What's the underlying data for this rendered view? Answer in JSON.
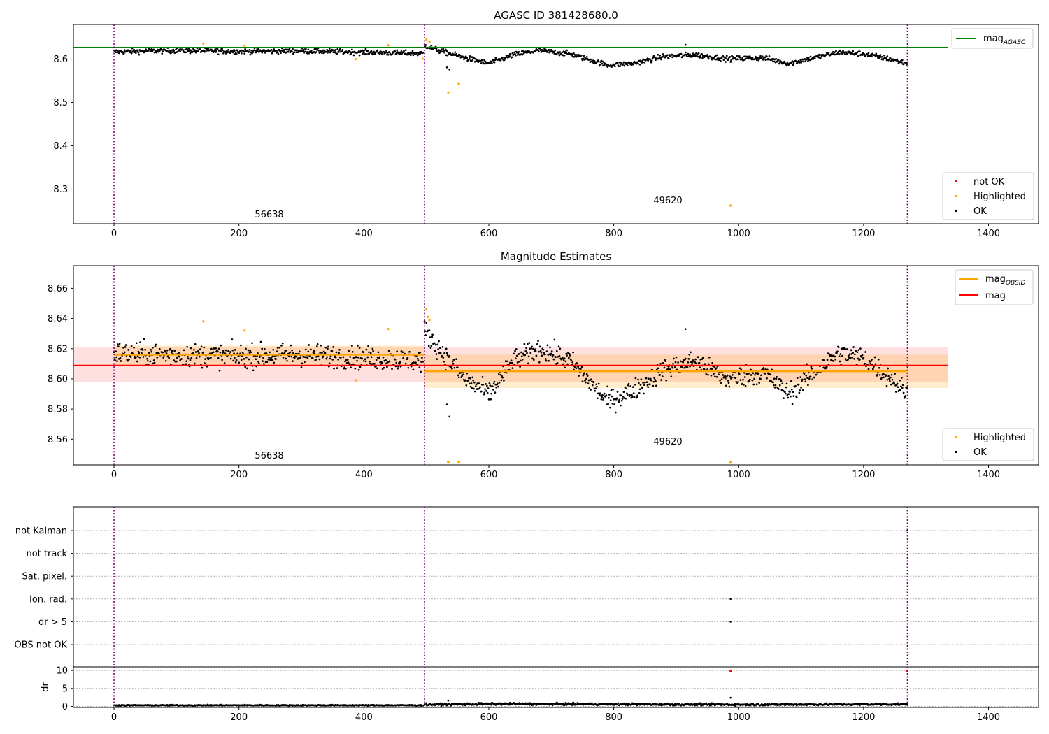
{
  "chart_data": [
    {
      "type": "scatter",
      "title": "AGASC ID 381428680.0",
      "xlabel": "",
      "ylabel": "",
      "xlim": [
        -65,
        1480
      ],
      "ylim": [
        8.22,
        8.68
      ],
      "xticks": [
        0,
        200,
        400,
        600,
        800,
        1000,
        1200,
        1400
      ],
      "yticks": [
        8.3,
        8.4,
        8.5,
        8.6
      ],
      "ytick_labels": [
        "8.3",
        "8.4",
        "8.5",
        "8.6"
      ],
      "obsid_boundaries": [
        0,
        497,
        1270
      ],
      "obsid_labels": [
        {
          "text": "56638",
          "x": 248,
          "y": 8.24
        },
        {
          "text": "49620",
          "x": 883,
          "y": 8.272
        }
      ],
      "reference_lines": [
        {
          "name": "mag_AGASC",
          "label_main": "mag",
          "label_sub": "AGASC",
          "y": 8.627,
          "x_range": [
            -65,
            1335
          ],
          "color": "#008000"
        }
      ],
      "series": [
        {
          "name": "not OK",
          "color": "#ff0000",
          "points": []
        },
        {
          "name": "Highlighted",
          "color": "#ffa500",
          "points": [
            [
              143,
              8.636
            ],
            [
              209,
              8.631
            ],
            [
              387,
              8.6
            ],
            [
              439,
              8.632
            ],
            [
              494,
              8.601
            ],
            [
              500,
              8.645
            ],
            [
              505,
              8.64
            ],
            [
              535,
              8.523
            ],
            [
              552,
              8.543
            ],
            [
              987,
              8.262
            ]
          ]
        },
        {
          "name": "OK",
          "color": "#000000",
          "segments": [
            {
              "x_range": [
                0,
                495
              ],
              "levels": [
                [
                  0,
                  8.617
                ],
                [
                  100,
                  8.62
                ],
                [
                  200,
                  8.618
                ],
                [
                  300,
                  8.619
                ],
                [
                  400,
                  8.616
                ],
                [
                  495,
                  8.613
                ]
              ],
              "noise": 0.006,
              "outliers": []
            },
            {
              "x_range": [
                497,
                1270
              ],
              "levels": [
                [
                  497,
                  8.632
                ],
                [
                  520,
                  8.62
                ],
                [
                  560,
                  8.604
                ],
                [
                  600,
                  8.59
                ],
                [
                  640,
                  8.61
                ],
                [
                  680,
                  8.62
                ],
                [
                  730,
                  8.612
                ],
                [
                  790,
                  8.586
                ],
                [
                  830,
                  8.59
                ],
                [
                  880,
                  8.606
                ],
                [
                  930,
                  8.61
                ],
                [
                  980,
                  8.601
                ],
                [
                  1040,
                  8.603
                ],
                [
                  1080,
                  8.59
                ],
                [
                  1120,
                  8.603
                ],
                [
                  1160,
                  8.616
                ],
                [
                  1200,
                  8.612
                ],
                [
                  1240,
                  8.601
                ],
                [
                  1270,
                  8.59
                ]
              ],
              "noise": 0.006,
              "outliers": [
                [
                  533,
                  8.581
                ],
                [
                  537,
                  8.576
                ],
                [
                  915,
                  8.633
                ]
              ]
            }
          ]
        }
      ],
      "legends": {
        "lines": {
          "placement": "upper right"
        },
        "points": {
          "placement": "lower right",
          "items": [
            "not OK",
            "Highlighted",
            "OK"
          ]
        }
      }
    },
    {
      "type": "scatter",
      "title": "Magnitude Estimates",
      "xlabel": "",
      "ylabel": "",
      "xlim": [
        -65,
        1480
      ],
      "ylim": [
        8.543,
        8.675
      ],
      "xticks": [
        0,
        200,
        400,
        600,
        800,
        1000,
        1200,
        1400
      ],
      "yticks": [
        8.56,
        8.58,
        8.6,
        8.62,
        8.64,
        8.66
      ],
      "ytick_labels": [
        "8.56",
        "8.58",
        "8.60",
        "8.62",
        "8.64",
        "8.66"
      ],
      "obsid_boundaries": [
        0,
        497,
        1270
      ],
      "obsid_labels": [
        {
          "text": "56638",
          "x": 248,
          "y": 8.5465
        },
        {
          "text": "49620",
          "x": 883,
          "y": 8.5565
        }
      ],
      "bands": [
        {
          "name": "mag band",
          "x_range": [
            -65,
            1335
          ],
          "y_range": [
            8.598,
            8.621
          ],
          "color": "#ff0000",
          "opacity": 0.12
        },
        {
          "name": "mag_OBSID band 56638",
          "x_range": [
            0,
            497
          ],
          "y_range": [
            8.609,
            8.622
          ],
          "color": "#ffa500",
          "opacity": 0.2
        },
        {
          "name": "mag_OBSID band 49620",
          "x_range": [
            497,
            1335
          ],
          "y_range": [
            8.594,
            8.616
          ],
          "color": "#ffa500",
          "opacity": 0.2
        }
      ],
      "reference_lines": [
        {
          "name": "mag_OBSID 56638",
          "y": 8.616,
          "x_range": [
            0,
            497
          ],
          "color": "#ffa500"
        },
        {
          "name": "mag_OBSID 49620",
          "y": 8.605,
          "x_range": [
            497,
            1270
          ],
          "color": "#ffa500"
        },
        {
          "name": "mag",
          "y": 8.609,
          "x_range": [
            -65,
            1335
          ],
          "color": "#ff0000"
        }
      ],
      "line_legend": [
        {
          "label_main": "mag",
          "label_sub": "OBSID",
          "color": "#ffa500"
        },
        {
          "label_main": "mag",
          "label_sub": "",
          "color": "#ff0000"
        }
      ],
      "series": [
        {
          "name": "Highlighted",
          "color": "#ffa500",
          "points": [
            [
              143,
              8.638
            ],
            [
              209,
              8.632
            ],
            [
              387,
              8.599
            ],
            [
              439,
              8.633
            ],
            [
              500,
              8.646
            ],
            [
              503,
              8.641
            ],
            [
              505,
              8.639
            ]
          ],
          "offscale_markers": [
            535,
            552,
            987
          ]
        },
        {
          "name": "OK",
          "color": "#000000",
          "segments": [
            {
              "x_range": [
                0,
                495
              ],
              "levels": [
                [
                  0,
                  8.617
                ],
                [
                  100,
                  8.616
                ],
                [
                  200,
                  8.615
                ],
                [
                  300,
                  8.616
                ],
                [
                  400,
                  8.614
                ],
                [
                  495,
                  8.612
                ]
              ],
              "noise": 0.0075,
              "outliers": []
            },
            {
              "x_range": [
                497,
                1270
              ],
              "levels": [
                [
                  497,
                  8.632
                ],
                [
                  520,
                  8.62
                ],
                [
                  560,
                  8.6
                ],
                [
                  600,
                  8.59
                ],
                [
                  640,
                  8.612
                ],
                [
                  680,
                  8.62
                ],
                [
                  730,
                  8.612
                ],
                [
                  790,
                  8.585
                ],
                [
                  830,
                  8.592
                ],
                [
                  880,
                  8.606
                ],
                [
                  930,
                  8.612
                ],
                [
                  980,
                  8.6
                ],
                [
                  1040,
                  8.604
                ],
                [
                  1080,
                  8.59
                ],
                [
                  1120,
                  8.604
                ],
                [
                  1160,
                  8.617
                ],
                [
                  1200,
                  8.614
                ],
                [
                  1240,
                  8.602
                ],
                [
                  1270,
                  8.59
                ]
              ],
              "noise": 0.007,
              "outliers": [
                [
                  533,
                  8.583
                ],
                [
                  537,
                  8.575
                ],
                [
                  915,
                  8.633
                ]
              ]
            }
          ]
        }
      ],
      "legends": {
        "lines": {
          "placement": "upper right"
        },
        "points": {
          "placement": "lower right",
          "items": [
            "Highlighted",
            "OK"
          ]
        }
      }
    },
    {
      "type": "scatter",
      "title": "",
      "xlabel": "",
      "ylabel": "",
      "xlim": [
        -65,
        1480
      ],
      "categories": [
        "not Kalman",
        "not track",
        "Sat. pixel.",
        "Ion. rad.",
        "dr > 5",
        "OBS not OK"
      ],
      "obsid_boundaries": [
        0,
        497,
        1270
      ],
      "points": [
        {
          "category": "Ion. rad.",
          "x": 987
        },
        {
          "category": "dr > 5",
          "x": 987
        },
        {
          "category": "not Kalman",
          "x": 1270
        }
      ]
    },
    {
      "type": "scatter",
      "title": "",
      "xlabel": "",
      "ylabel": "dr",
      "xlim": [
        -65,
        1480
      ],
      "ylim": [
        -0.3,
        11
      ],
      "xticks": [
        0,
        200,
        400,
        600,
        800,
        1000,
        1200,
        1400
      ],
      "yticks": [
        0,
        5,
        10
      ],
      "obsid_boundaries": [
        0,
        497,
        1270
      ],
      "series": [
        {
          "name": "not OK",
          "color": "#ff0000",
          "points": [
            [
              987,
              9.8
            ],
            [
              1270,
              9.8
            ]
          ]
        },
        {
          "name": "OK",
          "color": "#000000",
          "segments": [
            {
              "x_range": [
                0,
                495
              ],
              "levels": [
                [
                  0,
                  0.3
                ],
                [
                  495,
                  0.3
                ]
              ],
              "noise": 0.15,
              "outliers": []
            },
            {
              "x_range": [
                497,
                1270
              ],
              "levels": [
                [
                  497,
                  0.5
                ],
                [
                  620,
                  0.7
                ],
                [
                  800,
                  0.6
                ],
                [
                  1000,
                  0.5
                ],
                [
                  1270,
                  0.6
                ]
              ],
              "noise": 0.3,
              "outliers": [
                [
                  535,
                  1.6
                ],
                [
                  987,
                  2.4
                ]
              ]
            }
          ]
        }
      ]
    }
  ]
}
